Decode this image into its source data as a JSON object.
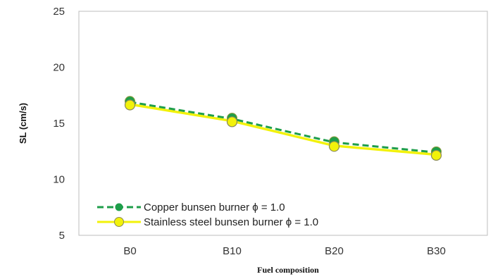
{
  "chart_data": {
    "type": "line",
    "categories": [
      "B0",
      "B10",
      "B20",
      "B30"
    ],
    "xlabel": "Fuel composition",
    "ylabel": "SL (cm/s)",
    "ylim": [
      5,
      25
    ],
    "yticks": [
      "5",
      "10",
      "15",
      "20",
      "25"
    ],
    "grid": false,
    "legend_placement": "bottom-left",
    "series": [
      {
        "name": "Copper bunsen burner ϕ  = 1.0",
        "values": [
          16.9,
          15.4,
          13.3,
          12.4
        ],
        "color": "#1e9e4a",
        "line_style": "dashed",
        "marker_fill": "#1e9e4a"
      },
      {
        "name": "Stainless steel bunsen burner ϕ  = 1.0",
        "values": [
          16.7,
          15.2,
          13.0,
          12.2
        ],
        "color": "#f2f20a",
        "line_style": "solid",
        "marker_fill": "#f2f20a"
      }
    ]
  }
}
